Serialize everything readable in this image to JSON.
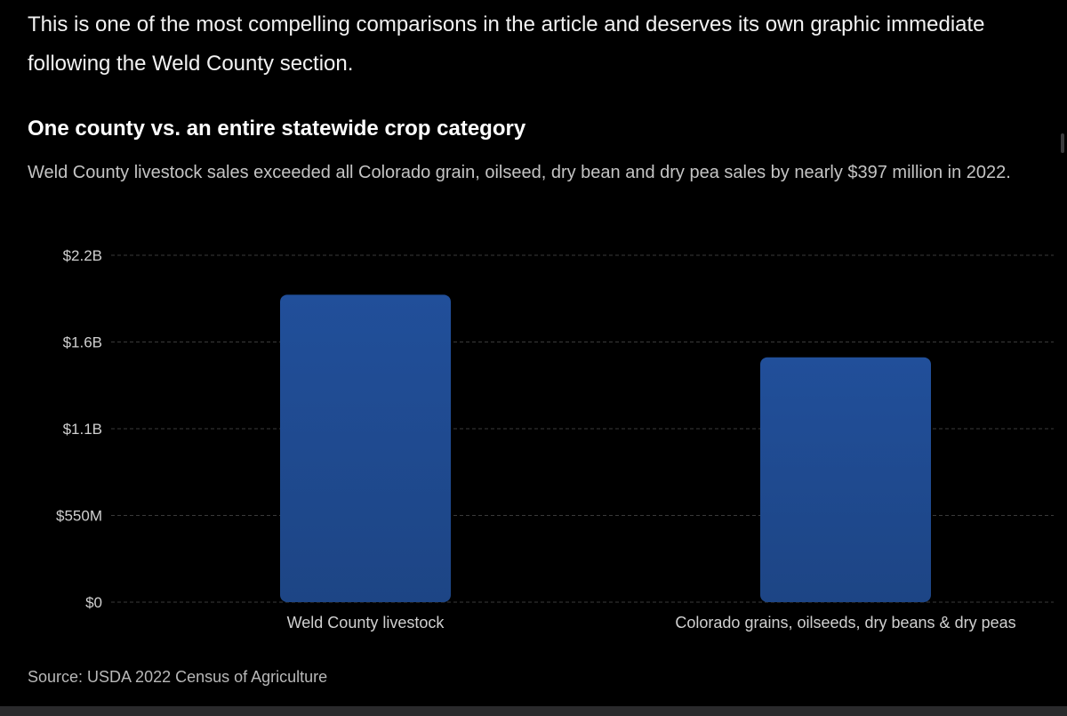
{
  "article": {
    "intro_line1": "This is one of the most compelling comparisons in the article and deserves its own graphic immediate",
    "intro_line2": "following the Weld County section."
  },
  "colors": {
    "background": "#000000",
    "bar_top": "#214f9a",
    "bar_bottom": "#1d4585",
    "gridline": "#3a3a3a",
    "tick_label": "#d0d0d0"
  },
  "chart_data": {
    "type": "bar",
    "title": "One county vs. an entire statewide crop category",
    "subtitle": "Weld County livestock sales exceeded all Colorado grain, oilseed, dry bean and dry pea sales by nearly $397 million in 2022.",
    "categories": [
      "Weld County livestock",
      "Colorado grains, oilseeds, dry beans & dry peas"
    ],
    "values": [
      1950000000,
      1553000000
    ],
    "ylim": [
      0,
      2200000000
    ],
    "yticks": [
      {
        "value": 0,
        "label": "$0"
      },
      {
        "value": 550000000,
        "label": "$550M"
      },
      {
        "value": 1100000000,
        "label": "$1.1B"
      },
      {
        "value": 1650000000,
        "label": "$1.6B"
      },
      {
        "value": 2200000000,
        "label": "$2.2B"
      }
    ],
    "xlabel": "",
    "ylabel": "",
    "grid": true,
    "legend": "none",
    "source": "Source: USDA 2022 Census of Agriculture"
  }
}
